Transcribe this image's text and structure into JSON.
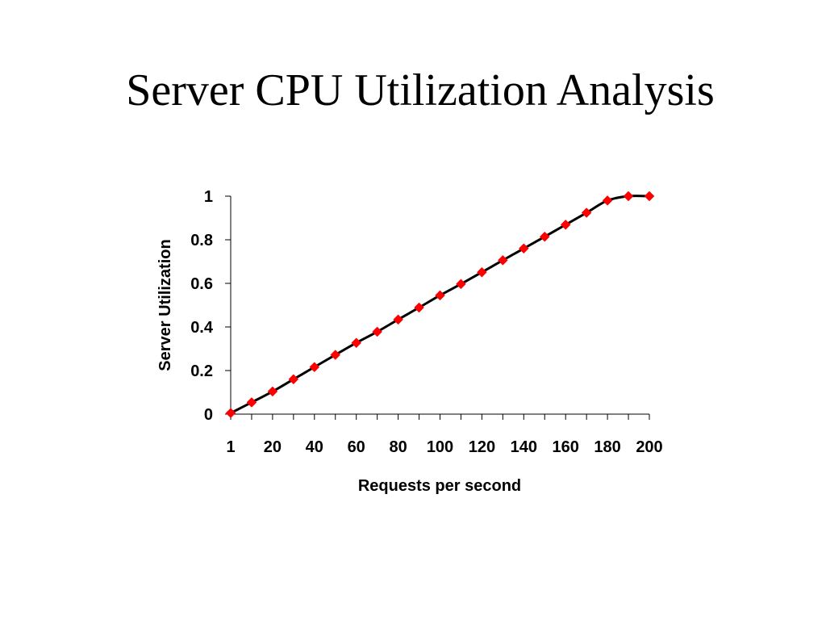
{
  "slide": {
    "title": "Server CPU Utilization Analysis"
  },
  "chart_data": {
    "type": "line",
    "title": "",
    "xlabel": "Requests per second",
    "ylabel": "Server Utilization",
    "x_tick_labels": [
      "1",
      "20",
      "40",
      "60",
      "80",
      "100",
      "120",
      "140",
      "160",
      "180",
      "200"
    ],
    "y_tick_labels": [
      "0",
      "0.2",
      "0.4",
      "0.6",
      "0.8",
      "1"
    ],
    "ylim": [
      0,
      1
    ],
    "grid": false,
    "legend": "none",
    "series": [
      {
        "line_color": "#000000",
        "marker": "diamond",
        "marker_color": "#ff0000",
        "x": [
          1,
          10,
          20,
          30,
          40,
          50,
          60,
          70,
          80,
          90,
          100,
          110,
          120,
          130,
          140,
          150,
          160,
          170,
          180,
          190,
          200
        ],
        "y": [
          0.005,
          0.054,
          0.104,
          0.16,
          0.216,
          0.272,
          0.327,
          0.378,
          0.434,
          0.489,
          0.545,
          0.597,
          0.651,
          0.706,
          0.76,
          0.814,
          0.869,
          0.924,
          0.98,
          1.0,
          1.0
        ]
      }
    ]
  }
}
